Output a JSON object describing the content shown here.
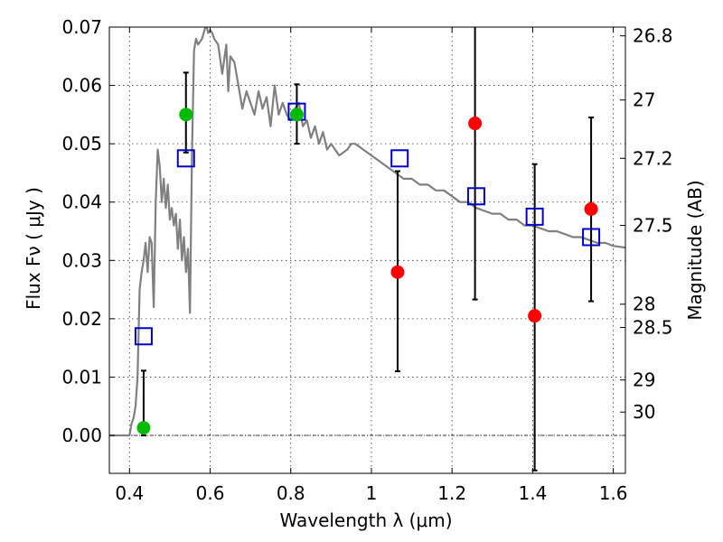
{
  "chart_data": {
    "type": "scatter",
    "xlabel": "Wavelength  λ (μm)",
    "ylabel": "Flux  Fν  ( μJy )",
    "y2label": "Magnitude (AB)",
    "xlim": [
      0.35,
      1.63
    ],
    "ylim": [
      -0.0065,
      0.07
    ],
    "grid": true,
    "x_ticks": [
      0.4,
      0.6,
      0.8,
      1.0,
      1.2,
      1.4,
      1.6
    ],
    "x_tick_labels": [
      "0.4",
      "0.6",
      "0.8",
      "1",
      "1.2",
      "1.4",
      "1.6"
    ],
    "y_ticks": [
      0.0,
      0.01,
      0.02,
      0.03,
      0.04,
      0.05,
      0.06,
      0.07
    ],
    "y_tick_labels": [
      "0.00",
      "0.01",
      "0.02",
      "0.03",
      "0.04",
      "0.05",
      "0.06",
      "0.07"
    ],
    "y2_ticks": [
      {
        "flux": 0.0685,
        "label": "26.8"
      },
      {
        "flux": 0.0575,
        "label": "27"
      },
      {
        "flux": 0.0475,
        "label": "27.2"
      },
      {
        "flux": 0.036,
        "label": "27.5"
      },
      {
        "flux": 0.0225,
        "label": "28"
      },
      {
        "flux": 0.0185,
        "label": "28.5"
      },
      {
        "flux": 0.0095,
        "label": "29"
      },
      {
        "flux": 0.004,
        "label": "30"
      }
    ],
    "colors": {
      "model": "#808080",
      "detected": "#00bb00",
      "upper": "#ff0000",
      "model_flux": "#0000cc",
      "errorbar": "#000000"
    },
    "model_spectrum": {
      "name": "",
      "x": [
        0.35,
        0.4,
        0.405,
        0.41,
        0.415,
        0.42,
        0.425,
        0.43,
        0.435,
        0.44,
        0.445,
        0.45,
        0.455,
        0.46,
        0.465,
        0.47,
        0.475,
        0.48,
        0.485,
        0.49,
        0.495,
        0.5,
        0.505,
        0.51,
        0.515,
        0.52,
        0.525,
        0.53,
        0.535,
        0.54,
        0.545,
        0.55,
        0.555,
        0.56,
        0.565,
        0.57,
        0.58,
        0.59,
        0.595,
        0.6,
        0.605,
        0.61,
        0.62,
        0.63,
        0.64,
        0.645,
        0.65,
        0.66,
        0.67,
        0.68,
        0.69,
        0.7,
        0.71,
        0.72,
        0.73,
        0.74,
        0.75,
        0.76,
        0.77,
        0.78,
        0.79,
        0.8,
        0.81,
        0.82,
        0.83,
        0.84,
        0.85,
        0.86,
        0.87,
        0.88,
        0.89,
        0.9,
        0.92,
        0.94,
        0.95,
        0.96,
        0.98,
        1.0,
        1.02,
        1.04,
        1.06,
        1.08,
        1.1,
        1.12,
        1.14,
        1.16,
        1.18,
        1.2,
        1.22,
        1.24,
        1.26,
        1.28,
        1.3,
        1.32,
        1.34,
        1.36,
        1.38,
        1.4,
        1.42,
        1.44,
        1.46,
        1.48,
        1.5,
        1.52,
        1.54,
        1.56,
        1.58,
        1.6,
        1.63
      ],
      "y": [
        0.0,
        0.0,
        0.002,
        0.003,
        0.005,
        0.01,
        0.025,
        0.028,
        0.03,
        0.033,
        0.028,
        0.034,
        0.033,
        0.022,
        0.04,
        0.049,
        0.046,
        0.04,
        0.044,
        0.039,
        0.043,
        0.037,
        0.039,
        0.036,
        0.038,
        0.032,
        0.037,
        0.03,
        0.034,
        0.028,
        0.032,
        0.021,
        0.048,
        0.066,
        0.068,
        0.067,
        0.068,
        0.0705,
        0.069,
        0.0695,
        0.069,
        0.068,
        0.067,
        0.062,
        0.067,
        0.059,
        0.065,
        0.064,
        0.06,
        0.056,
        0.059,
        0.057,
        0.055,
        0.059,
        0.056,
        0.058,
        0.053,
        0.06,
        0.055,
        0.057,
        0.055,
        0.054,
        0.056,
        0.057,
        0.053,
        0.054,
        0.051,
        0.053,
        0.05,
        0.052,
        0.049,
        0.05,
        0.048,
        0.049,
        0.05,
        0.05,
        0.049,
        0.048,
        0.047,
        0.046,
        0.045,
        0.044,
        0.044,
        0.043,
        0.043,
        0.042,
        0.042,
        0.041,
        0.04,
        0.04,
        0.039,
        0.0385,
        0.038,
        0.038,
        0.037,
        0.037,
        0.036,
        0.036,
        0.0355,
        0.035,
        0.035,
        0.0345,
        0.034,
        0.034,
        0.0335,
        0.033,
        0.033,
        0.0325,
        0.0322
      ]
    },
    "detected_points": {
      "name": "",
      "x": [
        0.435,
        0.54,
        0.815
      ],
      "y": [
        0.0013,
        0.055,
        0.055
      ],
      "yerr_low": [
        0.0013,
        0.0065,
        0.005
      ],
      "yerr_high": [
        0.0098,
        0.0072,
        0.0052
      ]
    },
    "upper_points": {
      "name": "",
      "x": [
        1.065,
        1.257,
        1.405,
        1.545
      ],
      "y": [
        0.028,
        0.0535,
        0.0205,
        0.0388
      ],
      "yerr_low": [
        0.017,
        0.0302,
        0.0265,
        0.0158
      ],
      "yerr_high": [
        0.0173,
        0.0205,
        0.026,
        0.0157
      ]
    },
    "model_fluxes": {
      "name": "",
      "x": [
        0.435,
        0.54,
        0.815,
        1.07,
        1.26,
        1.405,
        1.545
      ],
      "y": [
        0.017,
        0.0475,
        0.0555,
        0.0475,
        0.041,
        0.0375,
        0.034
      ]
    }
  }
}
